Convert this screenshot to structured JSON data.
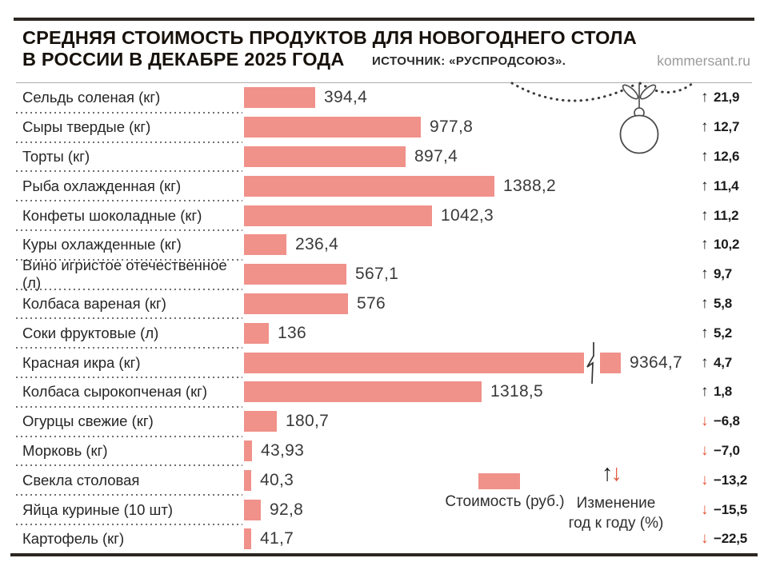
{
  "header": {
    "title_line1": "СРЕДНЯЯ СТОИМОСТЬ ПРОДУКТОВ ДЛЯ НОВОГОДНЕГО СТОЛА",
    "title_line2": "В РОССИИ В ДЕКАБРЕ 2025 ГОДА",
    "source": "ИСТОЧНИК: «РУСПРОДСОЮЗ».",
    "site": "kommersant.ru"
  },
  "legend": {
    "cost_label": "Стоимость (руб.)",
    "arrows": "↑↓",
    "change_label_line1": "Изменение",
    "change_label_line2": "год к году (%)"
  },
  "colors": {
    "bar": "#f0918a",
    "up_arrow": "#1c1c1c",
    "down_arrow": "#e5573b",
    "rule": "#2c2722"
  },
  "chart_data": {
    "type": "bar",
    "orientation": "horizontal",
    "title": "Средняя стоимость продуктов для новогоднего стола в России в декабре 2025 года",
    "source": "Руспродсоюз",
    "value_unit": "руб.",
    "change_unit": "% год к году",
    "legend_position": "bottom",
    "grid": false,
    "rows": [
      {
        "label": "Сельдь соленая (кг)",
        "value": 394.4,
        "value_label": "394,4",
        "change": 21.9,
        "change_label": "21,9",
        "direction": "up"
      },
      {
        "label": "Сыры твердые (кг)",
        "value": 977.8,
        "value_label": "977,8",
        "change": 12.7,
        "change_label": "12,7",
        "direction": "up"
      },
      {
        "label": "Торты (кг)",
        "value": 897.4,
        "value_label": "897,4",
        "change": 12.6,
        "change_label": "12,6",
        "direction": "up"
      },
      {
        "label": "Рыба охлажденная (кг)",
        "value": 1388.2,
        "value_label": "1388,2",
        "change": 11.4,
        "change_label": "11,4",
        "direction": "up"
      },
      {
        "label": "Конфеты шоколадные (кг)",
        "value": 1042.3,
        "value_label": "1042,3",
        "change": 11.2,
        "change_label": "11,2",
        "direction": "up"
      },
      {
        "label": "Куры охлажденные (кг)",
        "value": 236.4,
        "value_label": "236,4",
        "change": 10.2,
        "change_label": "10,2",
        "direction": "up"
      },
      {
        "label": "Вино игристое отечественное (л)",
        "value": 567.1,
        "value_label": "567,1",
        "change": 9.7,
        "change_label": "9,7",
        "direction": "up"
      },
      {
        "label": "Колбаса вареная (кг)",
        "value": 576,
        "value_label": "576",
        "change": 5.8,
        "change_label": "5,8",
        "direction": "up"
      },
      {
        "label": "Соки фруктовые (л)",
        "value": 136,
        "value_label": "136",
        "change": 5.2,
        "change_label": "5,2",
        "direction": "up"
      },
      {
        "label": "Красная икра (кг)",
        "value": 9364.7,
        "value_label": "9364,7",
        "change": 4.7,
        "change_label": "4,7",
        "direction": "up",
        "bar_broken": true
      },
      {
        "label": "Колбаса сырокопченая (кг)",
        "value": 1318.5,
        "value_label": "1318,5",
        "change": 1.8,
        "change_label": "1,8",
        "direction": "up"
      },
      {
        "label": "Огурцы свежие (кг)",
        "value": 180.7,
        "value_label": "180,7",
        "change": -6.8,
        "change_label": "−6,8",
        "direction": "down"
      },
      {
        "label": "Морковь (кг)",
        "value": 43.93,
        "value_label": "43,93",
        "change": -7.0,
        "change_label": "−7,0",
        "direction": "down"
      },
      {
        "label": "Свекла столовая",
        "value": 40.3,
        "value_label": "40,3",
        "change": -13.2,
        "change_label": "−13,2",
        "direction": "down"
      },
      {
        "label": "Яйца куриные (10 шт)",
        "value": 92.8,
        "value_label": "92,8",
        "change": -15.5,
        "change_label": "−15,5",
        "direction": "down"
      },
      {
        "label": "Картофель (кг)",
        "value": 41.7,
        "value_label": "41,7",
        "change": -22.5,
        "change_label": "−22,5",
        "direction": "down"
      }
    ]
  }
}
